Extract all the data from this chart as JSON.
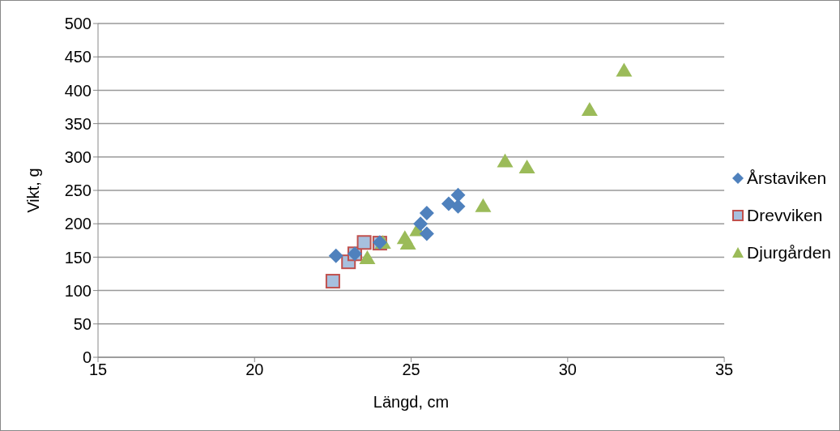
{
  "chart_data": {
    "type": "scatter",
    "xlabel": "Längd, cm",
    "ylabel": "Vikt, g",
    "xlim": [
      15,
      35
    ],
    "xticks": [
      15,
      20,
      25,
      30,
      35
    ],
    "ylim": [
      0,
      500
    ],
    "yticks": [
      0,
      50,
      100,
      150,
      200,
      250,
      300,
      350,
      400,
      450,
      500
    ],
    "grid": "y",
    "legend": "right",
    "series": [
      {
        "name": "Årstaviken",
        "color": "#4f81bd",
        "marker": "diamond",
        "x": [
          22.6,
          23.2,
          24.0,
          25.3,
          25.5,
          25.5,
          26.2,
          26.5,
          26.5
        ],
        "values": [
          152,
          155,
          172,
          200,
          216,
          185,
          230,
          243,
          226
        ]
      },
      {
        "name": "Drevviken",
        "color": "#c0504d",
        "marker": "square",
        "x": [
          22.5,
          23.0,
          23.2,
          23.5,
          24.0
        ],
        "values": [
          114,
          143,
          155,
          172,
          171
        ]
      },
      {
        "name": "Djurgården",
        "color": "#9bbb59",
        "marker": "triangle",
        "x": [
          23.6,
          24.1,
          24.8,
          24.9,
          25.2,
          27.3,
          28.0,
          28.7,
          30.7,
          31.8
        ],
        "values": [
          148,
          171,
          178,
          170,
          190,
          226,
          293,
          284,
          370,
          429
        ]
      }
    ]
  }
}
